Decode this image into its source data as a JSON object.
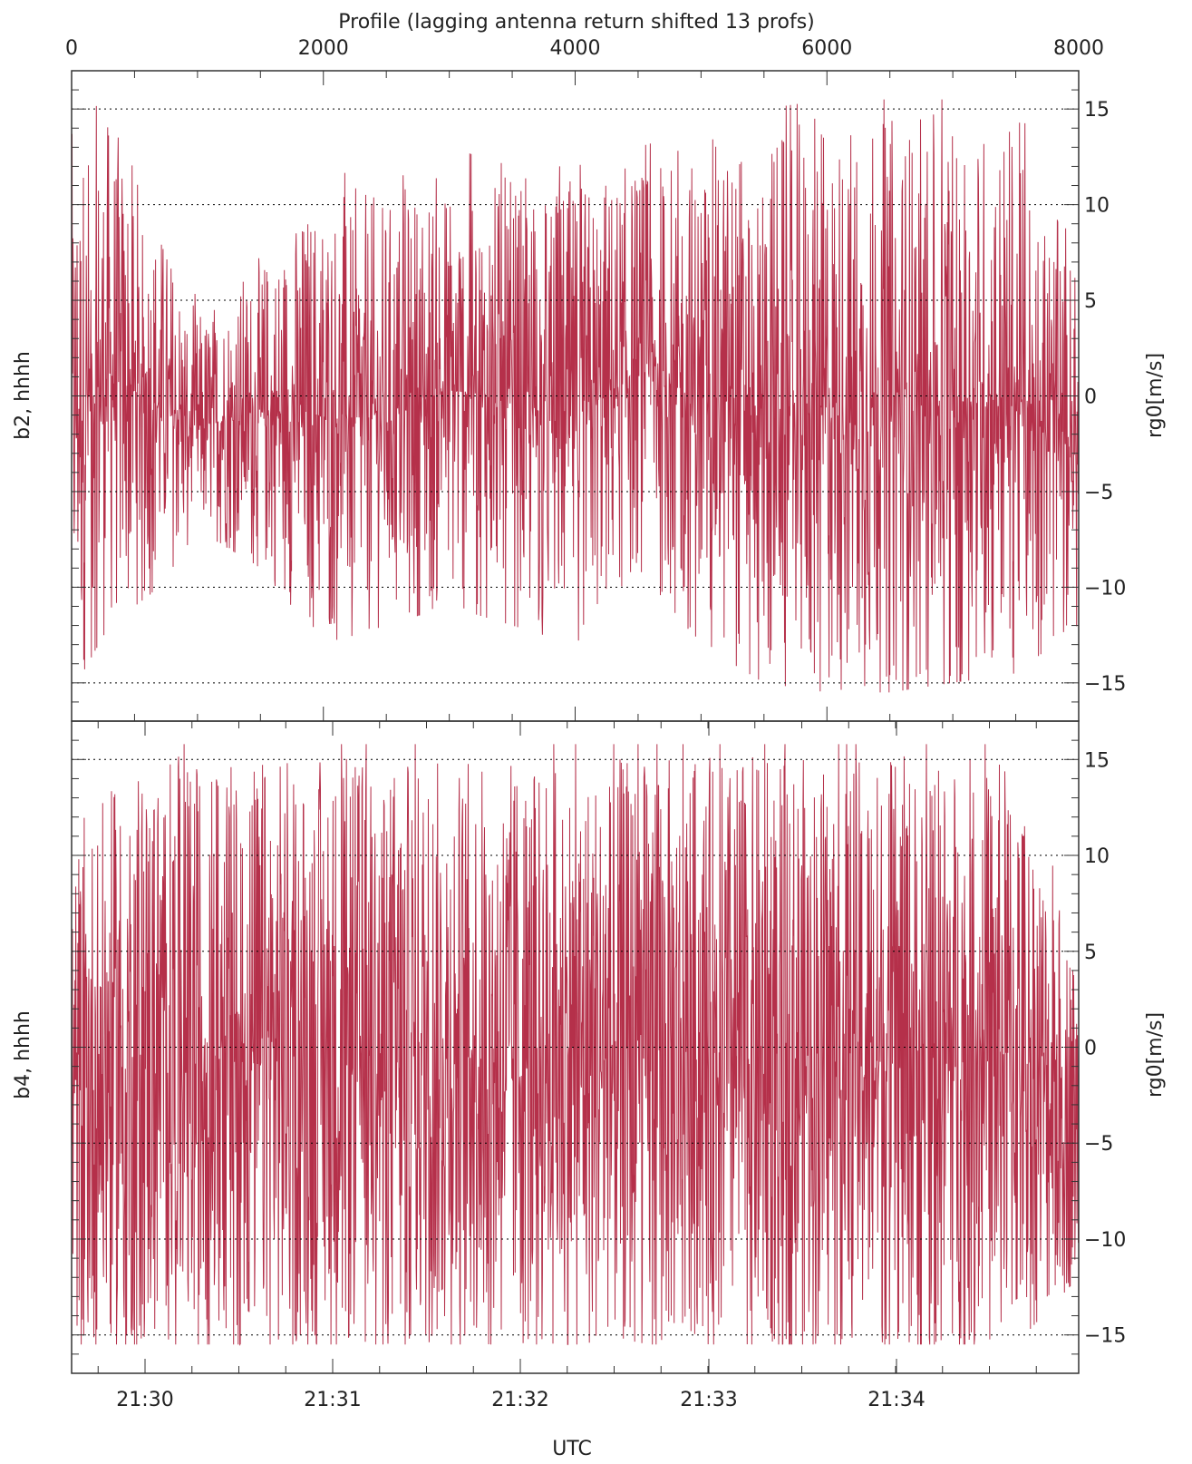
{
  "figure": {
    "top_axis_title": "Profile (lagging antenna return shifted 13 profs)",
    "bottom_axis_title": "UTC",
    "line_color": "#b5304a",
    "grid_color": "#000000"
  },
  "chart_data": [
    {
      "type": "line",
      "panel": "top",
      "left_label": "b2, hhhh",
      "right_label": "rg0[m/s]",
      "ylim": [
        -17,
        17
      ],
      "y_ticks": [
        15,
        10,
        5,
        0,
        -5,
        -10,
        -15
      ],
      "y_tick_labels": [
        "15",
        "10",
        "5",
        "0",
        "−5",
        "−10",
        "−15"
      ],
      "grid": "dotted at each labeled y tick",
      "xlim": [
        0,
        8000
      ],
      "top_x_ticks": [
        0,
        2000,
        4000,
        6000,
        8000
      ],
      "top_x_tick_labels": [
        "0",
        "2000",
        "4000",
        "6000",
        "8000"
      ],
      "series": [
        {
          "color": "#b5304a",
          "envelope": [
            {
              "x": 0,
              "min": -15.5,
              "max": 14.5
            },
            {
              "x": 300,
              "min": -12.0,
              "max": 15.5
            },
            {
              "x": 700,
              "min": -10.0,
              "max": 10.0
            },
            {
              "x": 1000,
              "min": -7.0,
              "max": 5.0
            },
            {
              "x": 1500,
              "min": -9.0,
              "max": 8.0
            },
            {
              "x": 2000,
              "min": -13.0,
              "max": 12.0
            },
            {
              "x": 2500,
              "min": -12.0,
              "max": 11.0
            },
            {
              "x": 3000,
              "min": -11.0,
              "max": 13.0
            },
            {
              "x": 3500,
              "min": -12.0,
              "max": 12.0
            },
            {
              "x": 4000,
              "min": -13.0,
              "max": 12.0
            },
            {
              "x": 4500,
              "min": -9.0,
              "max": 13.0
            },
            {
              "x": 5000,
              "min": -13.0,
              "max": 14.0
            },
            {
              "x": 5500,
              "min": -15.0,
              "max": 15.0
            },
            {
              "x": 6000,
              "min": -15.5,
              "max": 15.5
            },
            {
              "x": 6500,
              "min": -15.5,
              "max": 15.5
            },
            {
              "x": 7000,
              "min": -15.0,
              "max": 15.5
            },
            {
              "x": 7500,
              "min": -14.5,
              "max": 15.5
            },
            {
              "x": 8000,
              "min": -12.0,
              "max": 7.0
            }
          ]
        }
      ]
    },
    {
      "type": "line",
      "panel": "bottom",
      "left_label": "b4, hhhh",
      "right_label": "rg0[m/s]",
      "ylim": [
        -17,
        17
      ],
      "y_ticks": [
        15,
        10,
        5,
        0,
        -5,
        -10,
        -15
      ],
      "y_tick_labels": [
        "15",
        "10",
        "5",
        "0",
        "−5",
        "−10",
        "−15"
      ],
      "grid": "dotted at each labeled y tick",
      "xlabel": "UTC",
      "x_ticks": [
        "21:30",
        "21:31",
        "21:32",
        "21:33",
        "21:34"
      ],
      "series": [
        {
          "color": "#b5304a",
          "envelope": [
            {
              "x": 0,
              "min": -15.5,
              "max": 11.0
            },
            {
              "x": 500,
              "min": -15.5,
              "max": 15.8
            },
            {
              "x": 1000,
              "min": -15.5,
              "max": 15.8
            },
            {
              "x": 1500,
              "min": -15.5,
              "max": 15.8
            },
            {
              "x": 2000,
              "min": -15.5,
              "max": 15.8
            },
            {
              "x": 2500,
              "min": -15.5,
              "max": 15.8
            },
            {
              "x": 3000,
              "min": -15.5,
              "max": 15.8
            },
            {
              "x": 3500,
              "min": -15.5,
              "max": 15.8
            },
            {
              "x": 4000,
              "min": -15.5,
              "max": 15.8
            },
            {
              "x": 4500,
              "min": -15.5,
              "max": 15.8
            },
            {
              "x": 5000,
              "min": -15.5,
              "max": 15.8
            },
            {
              "x": 5500,
              "min": -15.5,
              "max": 15.8
            },
            {
              "x": 6000,
              "min": -15.5,
              "max": 15.8
            },
            {
              "x": 6500,
              "min": -15.5,
              "max": 15.8
            },
            {
              "x": 7000,
              "min": -15.5,
              "max": 15.8
            },
            {
              "x": 7500,
              "min": -15.5,
              "max": 15.8
            },
            {
              "x": 8000,
              "min": -12.0,
              "max": 5.0
            }
          ]
        }
      ]
    }
  ]
}
